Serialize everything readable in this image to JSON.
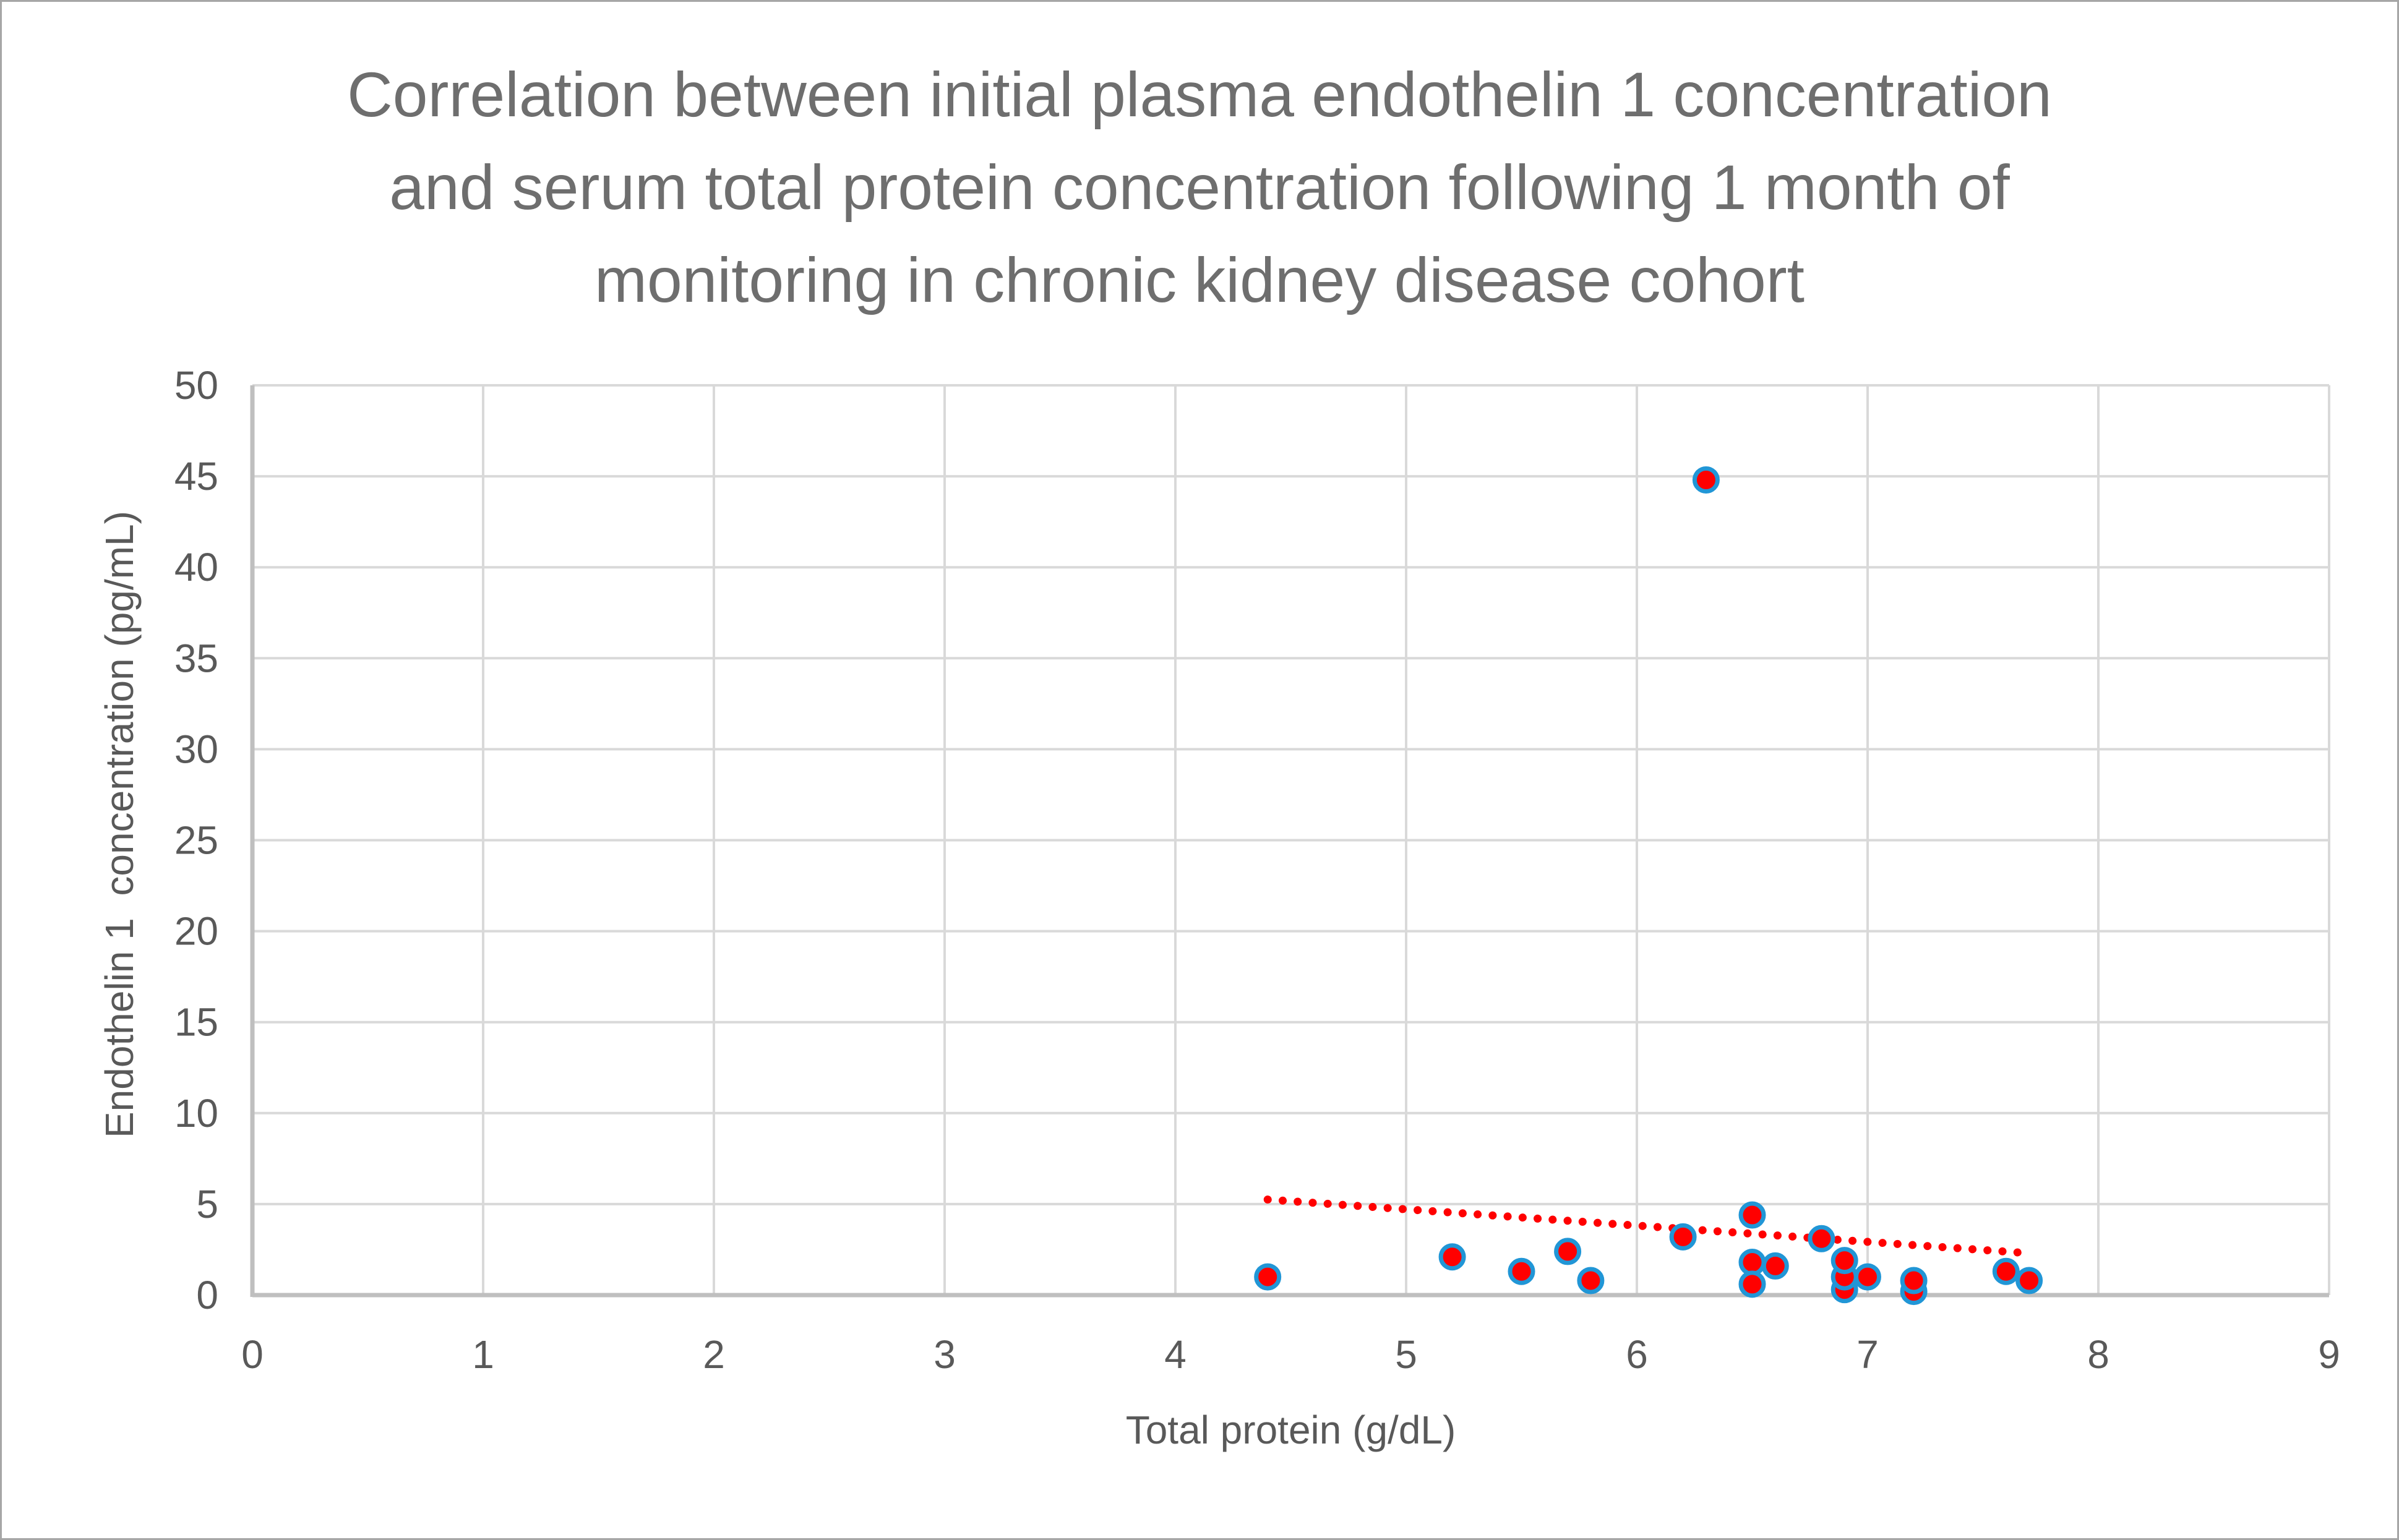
{
  "chart_data": {
    "type": "scatter",
    "title": "Correlation between initial plasma endothelin 1 concentration and serum total protein concentration following 1 month of monitoring in chronic kidney disease cohort",
    "title_lines": [
      "Correlation between initial plasma endothelin 1 concentration",
      "and serum total protein concentration following 1 month of",
      "monitoring in chronic kidney disease cohort"
    ],
    "xlabel": "Total protein (g/dL)",
    "ylabel": "Endothelin 1  concentration (pg/mL)",
    "xlim": [
      0,
      9
    ],
    "ylim": [
      0,
      50
    ],
    "xticks": [
      0,
      1,
      2,
      3,
      4,
      5,
      6,
      7,
      8,
      9
    ],
    "yticks": [
      0,
      5,
      10,
      15,
      20,
      25,
      30,
      35,
      40,
      45,
      50
    ],
    "grid": true,
    "legend": "none",
    "series": [
      {
        "marker": {
          "fill": "#FF0000",
          "stroke": "#2196D6"
        },
        "points": [
          [
            4.4,
            1.0
          ],
          [
            5.2,
            2.1
          ],
          [
            5.5,
            1.3
          ],
          [
            5.7,
            2.4
          ],
          [
            5.8,
            0.8
          ],
          [
            6.2,
            3.2
          ],
          [
            6.3,
            44.8
          ],
          [
            6.5,
            1.8
          ],
          [
            6.6,
            1.6
          ],
          [
            6.5,
            0.6
          ],
          [
            6.5,
            4.4
          ],
          [
            6.8,
            3.1
          ],
          [
            6.9,
            0.3
          ],
          [
            6.9,
            1.0
          ],
          [
            6.9,
            1.9
          ],
          [
            7.0,
            1.0
          ],
          [
            7.2,
            0.2
          ],
          [
            7.2,
            0.8
          ],
          [
            7.6,
            1.3
          ],
          [
            7.7,
            0.8
          ]
        ]
      }
    ],
    "trendline": {
      "type": "linear",
      "style": "dotted",
      "color": "#FF0000",
      "start": [
        4.4,
        5.25
      ],
      "end": [
        7.7,
        2.3
      ]
    }
  },
  "colors": {
    "gridline": "#D9D9D9",
    "axis_line": "#BFBFBF",
    "tick_text": "#595959",
    "title_text": "#6E6E6E",
    "background": "#FFFFFF",
    "frame_border": "#A6A6A6"
  }
}
